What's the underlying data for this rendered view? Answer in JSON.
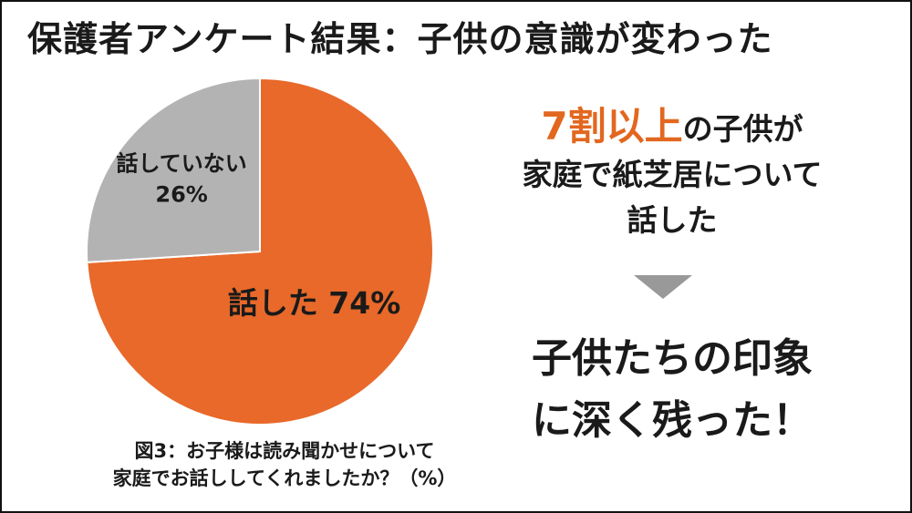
{
  "title": "保護者アンケート結果：子供の意識が変わった",
  "chart_data": {
    "type": "pie",
    "slices": [
      {
        "label": "話した",
        "value": 74,
        "value_text": "74%",
        "color": "#e8692a"
      },
      {
        "label": "話していない",
        "value": 26,
        "value_text": "26%",
        "color": "#b3b3b3"
      }
    ]
  },
  "caption": {
    "line1": "図3：お子様は読み聞かせについて",
    "line2": "家庭でお話ししてくれましたか？（%）"
  },
  "headline": {
    "highlight": "7割以上",
    "rest1": "の子供が",
    "line2": "家庭で紙芝居について",
    "line3": "話した"
  },
  "conclusion": {
    "line1": "子供たちの印象",
    "line2": "に深く残った！"
  },
  "colors": {
    "accent": "#e2671f",
    "arrow": "#999999"
  }
}
